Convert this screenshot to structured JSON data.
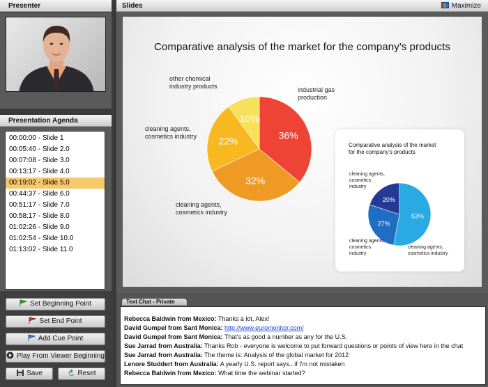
{
  "presenter": {
    "header": "Presenter"
  },
  "agenda": {
    "header": "Presentation Agenda",
    "items": [
      "00:00:00 - Slide 1",
      "00:05:40 - Slide 2.0",
      "00:07:08 - Slide 3.0",
      "00:13:17 - Slide 4.0",
      "00:19:02 - Slide 5.0",
      "00:44:37 - Slide 6.0",
      "00:51:17 - Slide 7.0",
      "00:58:17 - Slide 8.0",
      "01:02:26 - Slide 9.0",
      "01:02:54 - Slide 10.0",
      "01:13:02 - Slide 11.0"
    ],
    "selected_index": 4,
    "selected_color": "#f7c96a"
  },
  "buttons": {
    "set_beginning": "Set Beginning Point",
    "set_end": "Set End Point",
    "add_cue": "Add Cue Point",
    "play_from_beginning": "Play From Viewer Beginning",
    "save": "Save",
    "reset": "Reset"
  },
  "slides": {
    "header": "Slides",
    "maximize": "Maximize",
    "slide_title": "Comparative analysis of the market for the company's products",
    "main_pie": {
      "labels": {
        "other": [
          "other chemical",
          "industry products"
        ],
        "industrial": [
          "industrial gas",
          "production"
        ],
        "cleaning_left": [
          "cleaning agents,",
          "cosmetics industry"
        ],
        "cleaning_bottom": [
          "cleaning agents,",
          "cosmetics industry"
        ]
      }
    },
    "inset": {
      "title": [
        "Comparative analysis of the market",
        "for the company's products"
      ],
      "labels": {
        "top_left": [
          "cleaning agents,",
          "cosmetics",
          "industry"
        ],
        "bottom_left": [
          "cleaning agents,",
          "cosmetics",
          "industry"
        ],
        "bottom_right": [
          "cleaning agents,",
          "cosmetics industry"
        ]
      }
    }
  },
  "chart_data": [
    {
      "type": "pie",
      "title": "Comparative analysis of the market for the company's products",
      "slices": [
        {
          "label": "industrial gas production",
          "value": 36,
          "display": "36%",
          "color": "#ef4336"
        },
        {
          "label": "cleaning agents, cosmetics industry",
          "value": 32,
          "display": "32%",
          "color": "#ef9a22"
        },
        {
          "label": "cleaning agents, cosmetics industry",
          "value": 22,
          "display": "22%",
          "color": "#f7b820"
        },
        {
          "label": "other chemical industry products",
          "value": 10,
          "display": "10%",
          "color": "#f7e05a"
        }
      ]
    },
    {
      "type": "pie",
      "title": "Comparative analysis of the market for the company's products",
      "slices": [
        {
          "label": "cleaning agents, cosmetics industry",
          "value": 53,
          "display": "53%",
          "color": "#29aae3"
        },
        {
          "label": "cleaning agents, cosmetics industry",
          "value": 27,
          "display": "27%",
          "color": "#1f6ec4"
        },
        {
          "label": "cleaning agents, cosmetics industry",
          "value": 20,
          "display": "20%",
          "color": "#243a96"
        }
      ]
    }
  ],
  "chat": {
    "tab": "Text Chat - Private",
    "messages": [
      {
        "sender": "Rebecca Baldwin from Mexico:",
        "text": "Thanks a lot, Alex!"
      },
      {
        "sender": "David Gumpel from Sant Monica:",
        "text": "http://www.euromonitor.com/",
        "link": true
      },
      {
        "sender": "David Gumpel from Sant Monica:",
        "text": "That's as good a number as any for the U.S."
      },
      {
        "sender": "Sue Jarrad from Australia:",
        "text": "Thanks Rob - everyone is welcome to put forward questions or points of view here in the chat"
      },
      {
        "sender": "Sue Jarrad from Australia:",
        "text": "The theme is: Analysis of the global market for 2012"
      },
      {
        "sender": "Lenore Studdert from Australia:",
        "text": "A yearly U.S. report says...if I'm not mistaken"
      },
      {
        "sender": "Rebecca Baldwin from Mexico:",
        "text": "What time the webinar started?"
      }
    ]
  }
}
